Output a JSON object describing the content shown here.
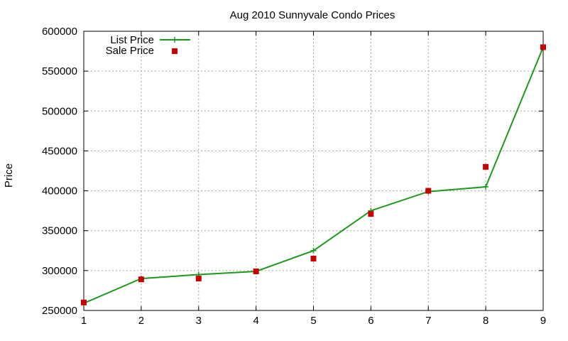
{
  "chart_data": {
    "type": "line",
    "title": "Aug 2010 Sunnyvale Condo Prices",
    "xlabel": "",
    "ylabel": "Price",
    "x": [
      1,
      2,
      3,
      4,
      5,
      6,
      7,
      8,
      9
    ],
    "xlim": [
      1,
      9
    ],
    "ylim": [
      250000,
      600000
    ],
    "xticks": [
      1,
      2,
      3,
      4,
      5,
      6,
      7,
      8,
      9
    ],
    "yticks": [
      250000,
      300000,
      350000,
      400000,
      450000,
      500000,
      550000,
      600000
    ],
    "grid": true,
    "legend_position": "top-left",
    "series": [
      {
        "name": "List Price",
        "style": "line+cross",
        "color": "#1a9a1a",
        "values": [
          259000,
          290000,
          295000,
          299000,
          325000,
          375000,
          399000,
          405000,
          580000
        ]
      },
      {
        "name": "Sale Price",
        "style": "square",
        "color": "#c80000",
        "values": [
          260000,
          289000,
          290000,
          299000,
          315000,
          371000,
          400000,
          430000,
          580000
        ]
      }
    ]
  }
}
